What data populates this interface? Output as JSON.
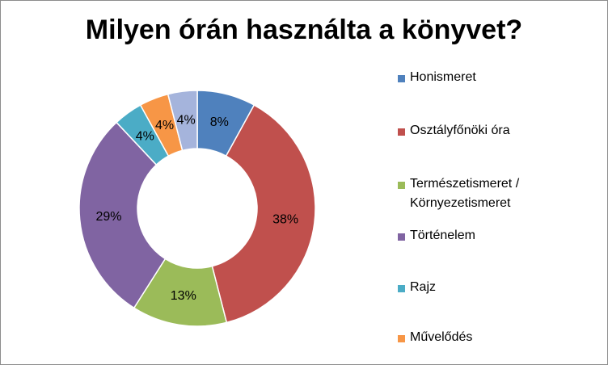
{
  "chart_data": {
    "type": "pie",
    "variant": "donut",
    "title": "Milyen órán használta a könyvet?",
    "categories": [
      "Honismeret",
      "Osztályfőnöki óra",
      "Természetismeret / Környezetismeret",
      "Történelem",
      "Rajz",
      "Művelődés",
      ""
    ],
    "values": [
      8,
      38,
      13,
      29,
      4,
      4,
      4
    ],
    "data_labels": [
      "8%",
      "38%",
      "13%",
      "29%",
      "4%",
      "4%",
      "4%"
    ],
    "colors": [
      "#4f81bd",
      "#c0504d",
      "#9bbb59",
      "#8064a2",
      "#4bacc6",
      "#f79646",
      "#a5b4dc"
    ],
    "legend": {
      "position": "right",
      "entries": [
        {
          "label": "Honismeret",
          "color": "#4f81bd"
        },
        {
          "label": "Osztályfőnöki óra",
          "color": "#c0504d"
        },
        {
          "label": "Természetismeret / Környezetismeret",
          "color": "#9bbb59"
        },
        {
          "label": "Történelem",
          "color": "#8064a2"
        },
        {
          "label": "Rajz",
          "color": "#4bacc6"
        },
        {
          "label": "Művelődés",
          "color": "#f79646"
        }
      ]
    }
  }
}
